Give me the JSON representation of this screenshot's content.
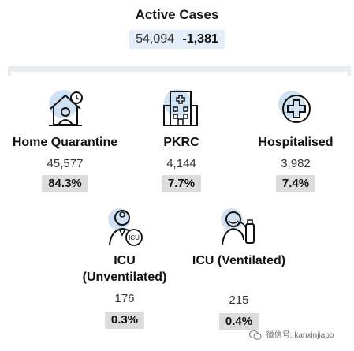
{
  "header": {
    "title": "Active Cases",
    "total": "54,094",
    "delta": "-1,381"
  },
  "categories": [
    {
      "label": "Home Quarantine",
      "count": "45,577",
      "percent": "84.3%",
      "icon": "home-quarantine-icon"
    },
    {
      "label": "PKRC",
      "count": "4,144",
      "percent": "7.7%",
      "icon": "hospital-building-icon"
    },
    {
      "label": "Hospitalised",
      "count": "3,982",
      "percent": "7.4%",
      "icon": "medical-cross-icon"
    },
    {
      "label_line1": "ICU",
      "label_line2": "(Unventilated)",
      "count": "176",
      "percent": "0.3%",
      "icon": "icu-doctor-icon"
    },
    {
      "label": "ICU (Ventilated)",
      "count": "215",
      "percent": "0.4%",
      "icon": "ventilated-patient-icon"
    }
  ],
  "watermark": {
    "text": "微信号: kanxinjiapo"
  },
  "colors": {
    "accent_circle": "#cfe2f3",
    "percent_bg": "#dcdcdc",
    "header_bg": "#e4edf8"
  }
}
